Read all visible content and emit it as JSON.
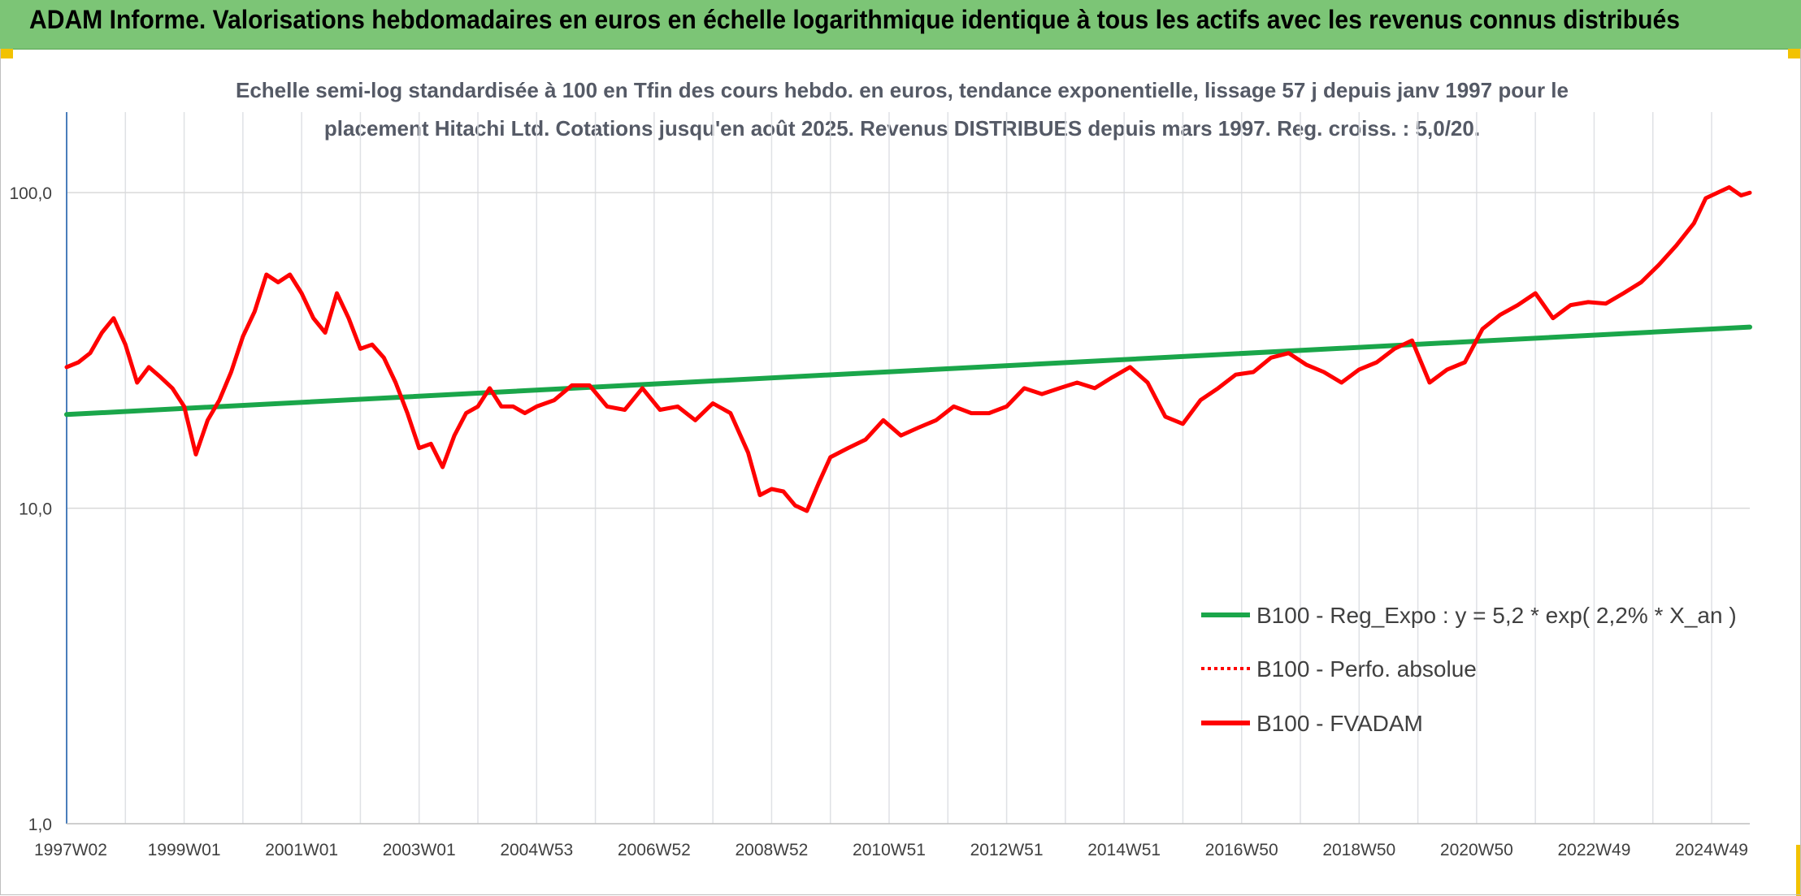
{
  "banner": {
    "title": "ADAM Informe. Valorisations hebdomadaires en euros en échelle logarithmique identique à tous les actifs avec les revenus connus distribués"
  },
  "chart_data": {
    "type": "line",
    "title_line1": "Echelle semi-log standardisée à 100 en Tfin des cours hebdo. en euros, tendance exponentielle, lissage 57 j depuis janv 1997 pour le",
    "title_line2": "placement Hitachi Ltd. Cotations jusqu'en août 2025. Revenus DISTRIBUES depuis mars 1997. Reg. croiss. : 5,0/20.",
    "y_scale": "log",
    "ylim": [
      1,
      180
    ],
    "xlim": [
      1997.0,
      2025.65
    ],
    "y_ticks": [
      {
        "value": 1,
        "label": "1,0"
      },
      {
        "value": 10,
        "label": "10,0"
      },
      {
        "value": 100,
        "label": "100,0"
      }
    ],
    "x_ticks": [
      {
        "value": 1997.0,
        "label": "1997W02"
      },
      {
        "value": 1999.0,
        "label": "1999W01"
      },
      {
        "value": 2001.0,
        "label": "2001W01"
      },
      {
        "value": 2003.0,
        "label": "2003W01"
      },
      {
        "value": 2005.0,
        "label": "2004W53"
      },
      {
        "value": 2007.0,
        "label": "2006W52"
      },
      {
        "value": 2009.0,
        "label": "2008W52"
      },
      {
        "value": 2011.0,
        "label": "2010W51"
      },
      {
        "value": 2013.0,
        "label": "2012W51"
      },
      {
        "value": 2015.0,
        "label": "2014W51"
      },
      {
        "value": 2017.0,
        "label": "2016W50"
      },
      {
        "value": 2019.0,
        "label": "2018W50"
      },
      {
        "value": 2021.0,
        "label": "2020W50"
      },
      {
        "value": 2023.0,
        "label": "2022W49"
      },
      {
        "value": 2025.0,
        "label": "2024W49"
      }
    ],
    "grid_vertical": true,
    "grid_horizontal": true,
    "legend_position": "center-right",
    "series": [
      {
        "name": "B100 - Reg_Expo : y = 5,2 * exp( 2,2% *  X_an )",
        "color": "#1aa64a",
        "style": "solid",
        "x": [
          1997.0,
          2025.65
        ],
        "y": [
          19.8,
          37.5
        ]
      },
      {
        "name": "B100 - Perfo. absolue",
        "color": "#ff0000",
        "style": "dotted",
        "x": [],
        "y": []
      },
      {
        "name": "B100 - FVADAM",
        "color": "#ff0000",
        "style": "solid",
        "x": [
          1997.0,
          1997.2,
          1997.4,
          1997.6,
          1997.8,
          1998.0,
          1998.2,
          1998.4,
          1998.6,
          1998.8,
          1999.0,
          1999.2,
          1999.4,
          1999.6,
          1999.8,
          2000.0,
          2000.2,
          2000.4,
          2000.6,
          2000.8,
          2001.0,
          2001.2,
          2001.4,
          2001.6,
          2001.8,
          2002.0,
          2002.2,
          2002.4,
          2002.6,
          2002.8,
          2003.0,
          2003.2,
          2003.4,
          2003.6,
          2003.8,
          2004.0,
          2004.2,
          2004.4,
          2004.6,
          2004.8,
          2005.0,
          2005.3,
          2005.6,
          2005.9,
          2006.2,
          2006.5,
          2006.8,
          2007.1,
          2007.4,
          2007.7,
          2008.0,
          2008.3,
          2008.6,
          2008.8,
          2009.0,
          2009.2,
          2009.4,
          2009.6,
          2009.8,
          2010.0,
          2010.3,
          2010.6,
          2010.9,
          2011.2,
          2011.5,
          2011.8,
          2012.1,
          2012.4,
          2012.7,
          2013.0,
          2013.3,
          2013.6,
          2013.9,
          2014.2,
          2014.5,
          2014.8,
          2015.1,
          2015.4,
          2015.7,
          2016.0,
          2016.3,
          2016.6,
          2016.9,
          2017.2,
          2017.5,
          2017.8,
          2018.1,
          2018.4,
          2018.7,
          2019.0,
          2019.3,
          2019.6,
          2019.9,
          2020.2,
          2020.5,
          2020.8,
          2021.1,
          2021.4,
          2021.7,
          2022.0,
          2022.3,
          2022.6,
          2022.9,
          2023.2,
          2023.5,
          2023.8,
          2024.1,
          2024.4,
          2024.7,
          2024.9,
          2025.1,
          2025.3,
          2025.5,
          2025.65
        ],
        "y": [
          28,
          29,
          31,
          36,
          40,
          33,
          25,
          28,
          26,
          24,
          21,
          14.8,
          19,
          22,
          27,
          35,
          42,
          55,
          52,
          55,
          48,
          40,
          36,
          48,
          40,
          32,
          33,
          30,
          25,
          20,
          15.5,
          16,
          13.5,
          17,
          20,
          21,
          24,
          21,
          21,
          20,
          21,
          22,
          24.5,
          24.5,
          21,
          20.5,
          24,
          20.5,
          21,
          19,
          21.5,
          20,
          15,
          11,
          11.5,
          11.3,
          10.2,
          9.8,
          12,
          14.5,
          15.5,
          16.5,
          19,
          17,
          18,
          19,
          21,
          20,
          20,
          21,
          24,
          23,
          24,
          25,
          24,
          26,
          28,
          25,
          19.5,
          18.5,
          22,
          24,
          26.5,
          27,
          30,
          31,
          28.5,
          27,
          25,
          27.5,
          29,
          32,
          34,
          25,
          27.5,
          29,
          37,
          41,
          44,
          48,
          40,
          44,
          45,
          44.5,
          48,
          52,
          59,
          68,
          80,
          96,
          100,
          104,
          98,
          100
        ]
      }
    ]
  }
}
